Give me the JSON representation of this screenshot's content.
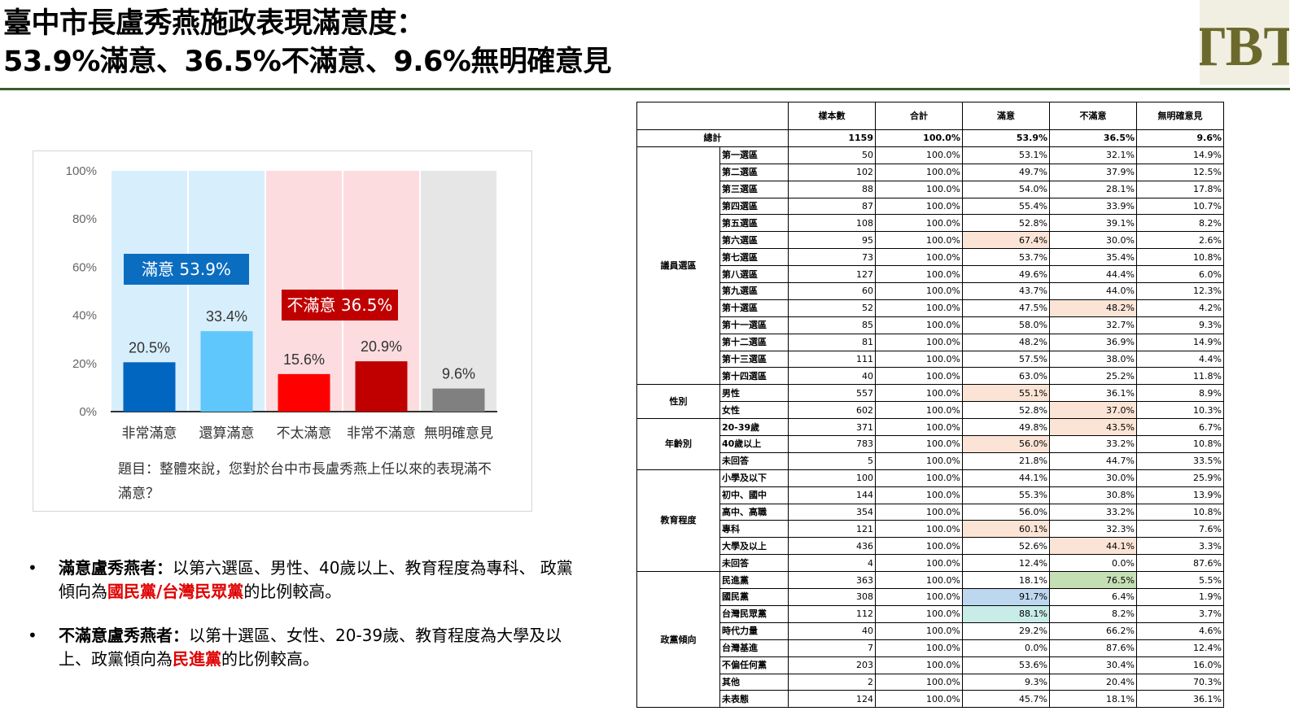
{
  "title": {
    "line1": "臺中市長盧秀燕施政表現滿意度：",
    "line2": "53.9%滿意、36.5%不滿意、9.6%無明確意見"
  },
  "logo": {
    "text": "TBT",
    "color": "#6b6a2c"
  },
  "chart_data": {
    "type": "bar",
    "categories": [
      "非常滿意",
      "還算滿意",
      "不太滿意",
      "非常不滿意",
      "無明確意見"
    ],
    "values": [
      20.5,
      33.4,
      15.6,
      20.9,
      9.6
    ],
    "value_labels": [
      "20.5%",
      "33.4%",
      "15.6%",
      "20.9%",
      "9.6%"
    ],
    "bar_colors": [
      "#0066c0",
      "#5fc7fb",
      "#ff0000",
      "#c00000",
      "#808080"
    ],
    "band_colors": [
      "#d7eefc",
      "#d7eefc",
      "#fddcdf",
      "#fddcdf",
      "#e6e6e6"
    ],
    "ylim": [
      0,
      100
    ],
    "yticks": [
      "0%",
      "20%",
      "40%",
      "60%",
      "80%",
      "100%"
    ],
    "annotations": [
      {
        "text": "滿意 53.9%",
        "color": "#0b6dc0"
      },
      {
        "text": "不滿意 36.5%",
        "color": "#c00000"
      }
    ],
    "grid": false,
    "legend": "none"
  },
  "question": "題目：整體來說，您對於台中市長盧秀燕上任以來的表現滿不滿意？",
  "bullets": [
    {
      "lead": "滿意盧秀燕者：",
      "text1": "以第六選區、男性、40歲以上、教育程度為專科、 政黨傾向為",
      "red": "國民黨/台灣民眾黨",
      "text2": "的比例較高。"
    },
    {
      "lead": "不滿意盧秀燕者：",
      "text1": "以第十選區、女性、20-39歲、教育程度為大學及以上、政黨傾向為",
      "red": "民進黨",
      "text2": "的比例較高。"
    }
  ],
  "table": {
    "headers": [
      "樣本數",
      "合計",
      "滿意",
      "不滿意",
      "無明確意見"
    ],
    "total": {
      "label": "總計",
      "values": [
        "1159",
        "100.0%",
        "53.9%",
        "36.5%",
        "9.6%"
      ]
    },
    "groups": [
      {
        "name": "議員選區",
        "rows": [
          {
            "label": "第一選區",
            "values": [
              "50",
              "100.0%",
              "53.1%",
              "32.1%",
              "14.9%"
            ]
          },
          {
            "label": "第二選區",
            "values": [
              "102",
              "100.0%",
              "49.7%",
              "37.9%",
              "12.5%"
            ]
          },
          {
            "label": "第三選區",
            "values": [
              "88",
              "100.0%",
              "54.0%",
              "28.1%",
              "17.8%"
            ]
          },
          {
            "label": "第四選區",
            "values": [
              "87",
              "100.0%",
              "55.4%",
              "33.9%",
              "10.7%"
            ]
          },
          {
            "label": "第五選區",
            "values": [
              "108",
              "100.0%",
              "52.8%",
              "39.1%",
              "8.2%"
            ]
          },
          {
            "label": "第六選區",
            "values": [
              "95",
              "100.0%",
              "67.4%",
              "30.0%",
              "2.6%"
            ],
            "hl": [
              2,
              "o"
            ]
          },
          {
            "label": "第七選區",
            "values": [
              "73",
              "100.0%",
              "53.7%",
              "35.4%",
              "10.8%"
            ]
          },
          {
            "label": "第八選區",
            "values": [
              "127",
              "100.0%",
              "49.6%",
              "44.4%",
              "6.0%"
            ]
          },
          {
            "label": "第九選區",
            "values": [
              "60",
              "100.0%",
              "43.7%",
              "44.0%",
              "12.3%"
            ]
          },
          {
            "label": "第十選區",
            "values": [
              "52",
              "100.0%",
              "47.5%",
              "48.2%",
              "4.2%"
            ],
            "hl": [
              3,
              "o"
            ]
          },
          {
            "label": "第十一選區",
            "values": [
              "85",
              "100.0%",
              "58.0%",
              "32.7%",
              "9.3%"
            ]
          },
          {
            "label": "第十二選區",
            "values": [
              "81",
              "100.0%",
              "48.2%",
              "36.9%",
              "14.9%"
            ]
          },
          {
            "label": "第十三選區",
            "values": [
              "111",
              "100.0%",
              "57.5%",
              "38.0%",
              "4.4%"
            ]
          },
          {
            "label": "第十四選區",
            "values": [
              "40",
              "100.0%",
              "63.0%",
              "25.2%",
              "11.8%"
            ]
          }
        ]
      },
      {
        "name": "性別",
        "rows": [
          {
            "label": "男性",
            "values": [
              "557",
              "100.0%",
              "55.1%",
              "36.1%",
              "8.9%"
            ],
            "hl": [
              2,
              "o"
            ]
          },
          {
            "label": "女性",
            "values": [
              "602",
              "100.0%",
              "52.8%",
              "37.0%",
              "10.3%"
            ],
            "hl": [
              3,
              "o"
            ]
          }
        ]
      },
      {
        "name": "年齡別",
        "rows": [
          {
            "label": "20-39歲",
            "values": [
              "371",
              "100.0%",
              "49.8%",
              "43.5%",
              "6.7%"
            ],
            "hl": [
              3,
              "o"
            ]
          },
          {
            "label": "40歲以上",
            "values": [
              "783",
              "100.0%",
              "56.0%",
              "33.2%",
              "10.8%"
            ],
            "hl": [
              2,
              "o"
            ]
          },
          {
            "label": "未回答",
            "values": [
              "5",
              "100.0%",
              "21.8%",
              "44.7%",
              "33.5%"
            ]
          }
        ]
      },
      {
        "name": "教育程度",
        "rows": [
          {
            "label": "小學及以下",
            "values": [
              "100",
              "100.0%",
              "44.1%",
              "30.0%",
              "25.9%"
            ]
          },
          {
            "label": "初中、國中",
            "values": [
              "144",
              "100.0%",
              "55.3%",
              "30.8%",
              "13.9%"
            ]
          },
          {
            "label": "高中、高職",
            "values": [
              "354",
              "100.0%",
              "56.0%",
              "33.2%",
              "10.8%"
            ]
          },
          {
            "label": "專科",
            "values": [
              "121",
              "100.0%",
              "60.1%",
              "32.3%",
              "7.6%"
            ],
            "hl": [
              2,
              "o"
            ]
          },
          {
            "label": "大學及以上",
            "values": [
              "436",
              "100.0%",
              "52.6%",
              "44.1%",
              "3.3%"
            ],
            "hl": [
              3,
              "o"
            ]
          },
          {
            "label": "未回答",
            "values": [
              "4",
              "100.0%",
              "12.4%",
              "0.0%",
              "87.6%"
            ]
          }
        ]
      },
      {
        "name": "政黨傾向",
        "rows": [
          {
            "label": "民進黨",
            "values": [
              "363",
              "100.0%",
              "18.1%",
              "76.5%",
              "5.5%"
            ],
            "hl": [
              3,
              "g"
            ]
          },
          {
            "label": "國民黨",
            "values": [
              "308",
              "100.0%",
              "91.7%",
              "6.4%",
              "1.9%"
            ],
            "hl": [
              2,
              "b"
            ]
          },
          {
            "label": "台灣民眾黨",
            "values": [
              "112",
              "100.0%",
              "88.1%",
              "8.2%",
              "3.7%"
            ],
            "hl": [
              2,
              "t"
            ]
          },
          {
            "label": "時代力量",
            "values": [
              "40",
              "100.0%",
              "29.2%",
              "66.2%",
              "4.6%"
            ]
          },
          {
            "label": "台灣基進",
            "values": [
              "7",
              "100.0%",
              "0.0%",
              "87.6%",
              "12.4%"
            ]
          },
          {
            "label": "不偏任何黨",
            "values": [
              "203",
              "100.0%",
              "53.6%",
              "30.4%",
              "16.0%"
            ]
          },
          {
            "label": "其他",
            "values": [
              "2",
              "100.0%",
              "9.3%",
              "20.4%",
              "70.3%"
            ]
          },
          {
            "label": "未表態",
            "values": [
              "124",
              "100.0%",
              "45.7%",
              "18.1%",
              "36.1%"
            ]
          }
        ]
      }
    ]
  }
}
